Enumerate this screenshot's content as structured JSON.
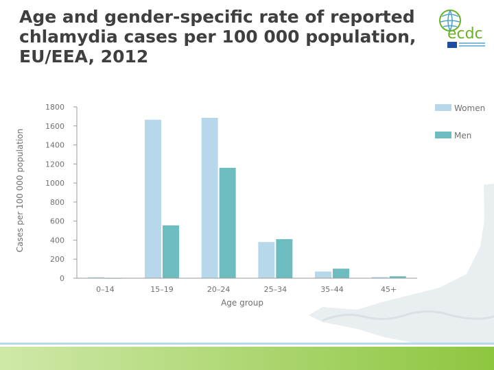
{
  "header": {
    "title_lines": [
      "Age and gender-specific rate of reported",
      "chlamydia cases per 100 000 population,",
      "EU/EEA, 2012"
    ]
  },
  "logo": {
    "text": "ecdc",
    "icon": "globe-icon",
    "brand_color": "#6ab023"
  },
  "colors": {
    "women": "#b7d8ea",
    "men": "#6dbcbf",
    "axis": "#9a9a9a",
    "text": "#6f6f6f",
    "accent_green": "#8dc63f"
  },
  "chart_data": {
    "type": "bar",
    "xlabel": "Age group",
    "ylabel": "Cases per 100 000 population",
    "categories": [
      "0–14",
      "15–19",
      "20–24",
      "25–34",
      "35–44",
      "45+"
    ],
    "ylim": [
      0,
      1800
    ],
    "yticks": [
      "0",
      "200",
      "400",
      "600",
      "800",
      "1000",
      "1200",
      "1400",
      "1600",
      "1800"
    ],
    "grid": false,
    "legend_position": "right",
    "series": [
      {
        "name": "Women",
        "values": [
          10,
          1665,
          1685,
          380,
          70,
          12
        ]
      },
      {
        "name": "Men",
        "values": [
          2,
          555,
          1160,
          410,
          100,
          20
        ]
      }
    ]
  }
}
